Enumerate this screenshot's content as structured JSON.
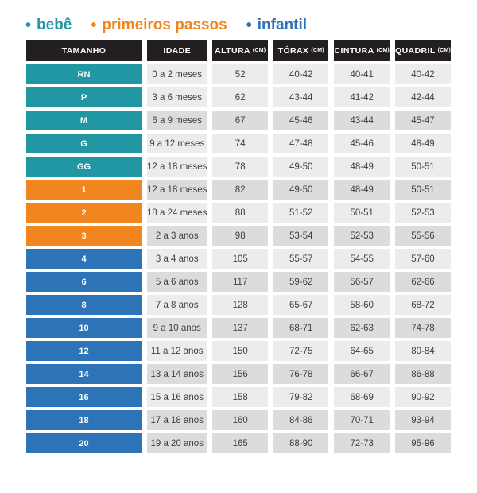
{
  "legend": {
    "items": [
      {
        "label": "bebê",
        "group": "bebe",
        "color": "#2297a4"
      },
      {
        "label": "primeiros passos",
        "group": "primeiros_passos",
        "color": "#f0861d"
      },
      {
        "label": "infantil",
        "group": "infantil",
        "color": "#2d73b8"
      }
    ]
  },
  "header": {
    "cells": [
      {
        "label": "TAMANHO",
        "unit": ""
      },
      {
        "label": "IDADE",
        "unit": ""
      },
      {
        "label": "ALTURA",
        "unit": "(CM)"
      },
      {
        "label": "TÓRAX",
        "unit": "(CM)"
      },
      {
        "label": "CINTURA",
        "unit": "(CM)"
      },
      {
        "label": "QUADRIL",
        "unit": "(CM)"
      }
    ]
  },
  "chart_data": {
    "type": "table",
    "legend": [
      "bebê",
      "primeiros passos",
      "infantil"
    ],
    "columns": [
      "TAMANHO",
      "IDADE",
      "ALTURA (CM)",
      "TÓRAX (CM)",
      "CINTURA (CM)",
      "QUADRIL (CM)"
    ],
    "rows": [
      {
        "tamanho": "RN",
        "group": "bebe",
        "shade": "light",
        "idade": "0 a 2 meses",
        "altura_cm": "52",
        "torax_cm": "40-42",
        "cintura_cm": "40-41",
        "quadril_cm": "40-42"
      },
      {
        "tamanho": "P",
        "group": "bebe",
        "shade": "light",
        "idade": "3 a 6 meses",
        "altura_cm": "62",
        "torax_cm": "43-44",
        "cintura_cm": "41-42",
        "quadril_cm": "42-44"
      },
      {
        "tamanho": "M",
        "group": "bebe",
        "shade": "dark",
        "idade": "6 a 9 meses",
        "altura_cm": "67",
        "torax_cm": "45-46",
        "cintura_cm": "43-44",
        "quadril_cm": "45-47"
      },
      {
        "tamanho": "G",
        "group": "bebe",
        "shade": "light",
        "idade": "9 a 12 meses",
        "altura_cm": "74",
        "torax_cm": "47-48",
        "cintura_cm": "45-46",
        "quadril_cm": "48-49"
      },
      {
        "tamanho": "GG",
        "group": "bebe",
        "shade": "light",
        "idade": "12 a 18 meses",
        "altura_cm": "78",
        "torax_cm": "49-50",
        "cintura_cm": "48-49",
        "quadril_cm": "50-51"
      },
      {
        "tamanho": "1",
        "group": "primeiros_passos",
        "shade": "dark",
        "idade": "12 a 18 meses",
        "altura_cm": "82",
        "torax_cm": "49-50",
        "cintura_cm": "48-49",
        "quadril_cm": "50-51"
      },
      {
        "tamanho": "2",
        "group": "primeiros_passos",
        "shade": "light",
        "idade": "18 a 24 meses",
        "altura_cm": "88",
        "torax_cm": "51-52",
        "cintura_cm": "50-51",
        "quadril_cm": "52-53"
      },
      {
        "tamanho": "3",
        "group": "primeiros_passos",
        "shade": "dark",
        "idade": "2 a 3 anos",
        "altura_cm": "98",
        "torax_cm": "53-54",
        "cintura_cm": "52-53",
        "quadril_cm": "55-56"
      },
      {
        "tamanho": "4",
        "group": "infantil",
        "shade": "light",
        "idade": "3 a 4 anos",
        "altura_cm": "105",
        "torax_cm": "55-57",
        "cintura_cm": "54-55",
        "quadril_cm": "57-60"
      },
      {
        "tamanho": "6",
        "group": "infantil",
        "shade": "dark",
        "idade": "5 a 6 anos",
        "altura_cm": "117",
        "torax_cm": "59-62",
        "cintura_cm": "56-57",
        "quadril_cm": "62-66"
      },
      {
        "tamanho": "8",
        "group": "infantil",
        "shade": "light",
        "idade": "7 a 8 anos",
        "altura_cm": "128",
        "torax_cm": "65-67",
        "cintura_cm": "58-60",
        "quadril_cm": "68-72"
      },
      {
        "tamanho": "10",
        "group": "infantil",
        "shade": "dark",
        "idade": "9 a 10 anos",
        "altura_cm": "137",
        "torax_cm": "68-71",
        "cintura_cm": "62-63",
        "quadril_cm": "74-78"
      },
      {
        "tamanho": "12",
        "group": "infantil",
        "shade": "light",
        "idade": "11 a 12 anos",
        "altura_cm": "150",
        "torax_cm": "72-75",
        "cintura_cm": "64-65",
        "quadril_cm": "80-84"
      },
      {
        "tamanho": "14",
        "group": "infantil",
        "shade": "dark",
        "idade": "13 a 14 anos",
        "altura_cm": "156",
        "torax_cm": "76-78",
        "cintura_cm": "66-67",
        "quadril_cm": "86-88"
      },
      {
        "tamanho": "16",
        "group": "infantil",
        "shade": "light",
        "idade": "15 a 16 anos",
        "altura_cm": "158",
        "torax_cm": "79-82",
        "cintura_cm": "68-69",
        "quadril_cm": "90-92"
      },
      {
        "tamanho": "18",
        "group": "infantil",
        "shade": "dark",
        "idade": "17 a 18 anos",
        "altura_cm": "160",
        "torax_cm": "84-86",
        "cintura_cm": "70-71",
        "quadril_cm": "93-94"
      },
      {
        "tamanho": "20",
        "group": "infantil",
        "shade": "dark",
        "idade": "19 a 20 anos",
        "altura_cm": "165",
        "torax_cm": "88-90",
        "cintura_cm": "72-73",
        "quadril_cm": "95-96"
      }
    ]
  },
  "colors": {
    "bebe": "#2297a4",
    "primeiros_passos": "#f0861d",
    "infantil": "#2d73b8",
    "header_bg": "#231f20",
    "header_text": "#ffffff",
    "row_light": "#ececec",
    "row_dark": "#dcdcdc",
    "cell_text": "#3f3f3f"
  }
}
